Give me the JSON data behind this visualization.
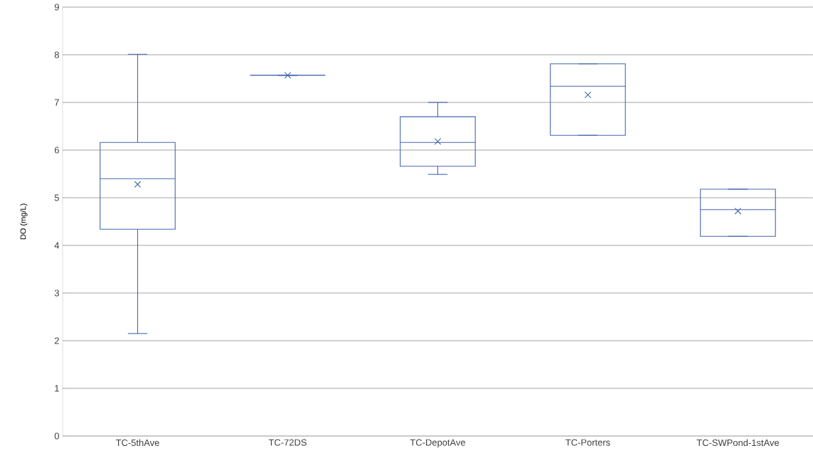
{
  "chart_data": {
    "type": "box",
    "ylabel": "DO (mg/L)",
    "categories": [
      "TC-5thAve",
      "TC-72DS",
      "TC-DepotAve",
      "TC-Porters",
      "TC-SWPond-1stAve"
    ],
    "boxes": [
      {
        "low": 2.15,
        "q1": 4.34,
        "median": 5.4,
        "q3": 6.16,
        "high": 8.01,
        "mean": 5.28
      },
      {
        "low": 7.57,
        "q1": 7.57,
        "median": 7.57,
        "q3": 7.57,
        "high": 7.57,
        "mean": 7.57
      },
      {
        "low": 5.49,
        "q1": 5.66,
        "median": 6.16,
        "q3": 6.7,
        "high": 7.0,
        "mean": 6.18
      },
      {
        "low": 6.31,
        "q1": 6.31,
        "median": 7.34,
        "q3": 7.81,
        "high": 7.81,
        "mean": 7.16
      },
      {
        "low": 4.19,
        "q1": 4.19,
        "median": 4.75,
        "q3": 5.18,
        "high": 5.18,
        "mean": 4.72
      }
    ],
    "color": "#4468ad",
    "ylim": [
      0,
      9
    ],
    "yticks": [
      0,
      1,
      2,
      3,
      4,
      5,
      6,
      7,
      8,
      9
    ],
    "grid": "y"
  }
}
